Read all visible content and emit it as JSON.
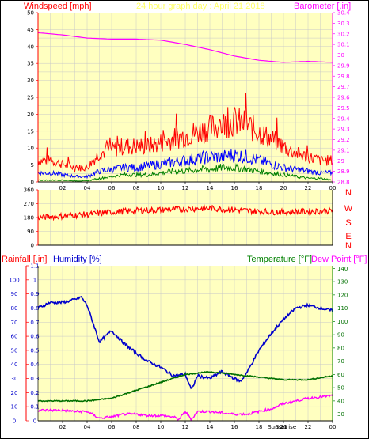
{
  "header": {
    "left": "Windspeed [mph]",
    "center": "24 hour graph day : April 21 2018",
    "right": "Barometer [.in]"
  },
  "bottom_header": {
    "rainfall": "Rainfall [.in]",
    "humidity": "Humidity [%]",
    "temperature": "Temperature [°F]",
    "dewpoint": "Dew Point [°F]"
  },
  "colors": {
    "plot_bg": "#ffffc0",
    "wind_gust": "#ff0000",
    "wind_avg": "#0000ff",
    "wind_low": "#008000",
    "barometer": "#ff00ff",
    "direction": "#ff0000",
    "humidity": "#0000cc",
    "temperature": "#007000",
    "dewpoint": "#ff00ff",
    "red_axis": "#ff0000",
    "green_axis": "#008000"
  },
  "chart_data": [
    {
      "type": "line",
      "title": "24 hour graph day : April 21 2018",
      "ylabel": "Windspeed [mph]",
      "y2label": "Barometer [.in]",
      "ylim": [
        0,
        50
      ],
      "y2lim": [
        28.8,
        30.4
      ],
      "yticks": [
        0,
        5,
        10,
        15,
        20,
        25,
        30,
        35,
        40,
        45,
        50
      ],
      "y2ticks": [
        "28.8",
        "28.9",
        "29",
        "29.1",
        "29.2",
        "29.3",
        "29.4",
        "29.5",
        "29.6",
        "29.7",
        "29.8",
        "29.9",
        "30",
        "30.1",
        "30.2",
        "30.3",
        "30.4"
      ],
      "xticks": [
        "02",
        "04",
        "06",
        "08",
        "10",
        "12",
        "14",
        "16",
        "18",
        "20",
        "22",
        "00"
      ],
      "series": [
        {
          "x": [
            0,
            1,
            2,
            3,
            4,
            5,
            6,
            7,
            8,
            9,
            10,
            11,
            12,
            13,
            14,
            15,
            16,
            17,
            18,
            19,
            20,
            21,
            22,
            23,
            24
          ],
          "values": [
            6,
            6,
            5,
            4,
            4,
            8,
            9,
            10,
            10,
            10,
            11,
            12,
            13,
            14,
            15,
            16,
            17,
            16,
            14,
            12,
            10,
            8,
            7,
            6,
            6
          ]
        },
        {
          "x": [
            0,
            1,
            2,
            3,
            4,
            5,
            6,
            7,
            8,
            9,
            10,
            11,
            12,
            13,
            14,
            15,
            16,
            17,
            18,
            19,
            20,
            21,
            22,
            23,
            24
          ],
          "values": [
            2.5,
            2.5,
            2,
            1.5,
            1.5,
            3,
            3.5,
            4,
            4,
            4.5,
            5,
            5.5,
            6,
            6.5,
            7,
            7,
            7.5,
            7,
            6,
            5,
            4,
            3.5,
            3,
            2.5,
            2.5
          ]
        },
        {
          "x": [
            0,
            1,
            2,
            3,
            4,
            5,
            6,
            7,
            8,
            9,
            10,
            11,
            12,
            13,
            14,
            15,
            16,
            17,
            18,
            19,
            20,
            21,
            22,
            23,
            24
          ],
          "values": [
            0.5,
            0.5,
            0.5,
            0.3,
            0.3,
            1,
            1.5,
            2,
            2,
            2,
            2.5,
            3,
            3,
            3.5,
            3.5,
            4,
            4,
            3.5,
            3,
            2.5,
            2,
            1.5,
            1,
            1,
            0.5
          ]
        },
        {
          "x": [
            0,
            2,
            4,
            6,
            8,
            10,
            12,
            14,
            16,
            18,
            20,
            22,
            24
          ],
          "values": [
            30.21,
            30.19,
            30.16,
            30.15,
            30.15,
            30.14,
            30.1,
            30.05,
            29.99,
            29.95,
            29.93,
            29.94,
            29.93
          ]
        }
      ]
    },
    {
      "type": "line",
      "yticks": [
        "0",
        "90",
        "180",
        "270",
        "360"
      ],
      "y_right": [
        "N",
        "W",
        "S",
        "E",
        "N"
      ],
      "ylim": [
        0,
        360
      ],
      "series": [
        {
          "x": [
            0,
            2,
            4,
            6,
            8,
            10,
            12,
            14,
            16,
            18,
            20,
            22,
            24
          ],
          "values": [
            180,
            190,
            200,
            215,
            225,
            230,
            235,
            240,
            230,
            220,
            215,
            220,
            225
          ]
        }
      ]
    },
    {
      "type": "line",
      "rain_ticks": [
        "0",
        "0.1",
        "0.2",
        "0.3",
        "0.4",
        "0.5",
        "0.6",
        "0.7",
        "0.8",
        "0.9",
        "1",
        "1.1"
      ],
      "hum_ticks": [
        "0",
        "10",
        "20",
        "30",
        "40",
        "50",
        "60",
        "70",
        "80",
        "90",
        "100"
      ],
      "temp_ticks": [
        "30",
        "40",
        "50",
        "60",
        "70",
        "80",
        "90",
        "100",
        "110",
        "120",
        "130",
        "140"
      ],
      "xticks": [
        "02",
        "04",
        "06",
        "08",
        "10",
        "12",
        "14",
        "16",
        "18",
        "20",
        "22",
        "00"
      ],
      "sun_labels": [
        "Sunset",
        "Sunrise"
      ],
      "series": [
        {
          "x": [
            0,
            1,
            2,
            3,
            3.5,
            4,
            5,
            6,
            7,
            8,
            9,
            10,
            11,
            12,
            12.5,
            13,
            14,
            15,
            16,
            16.5,
            17,
            18,
            19,
            20,
            21,
            22,
            23,
            24
          ],
          "values": [
            80,
            84,
            84,
            86,
            88,
            82,
            56,
            64,
            55,
            48,
            42,
            38,
            32,
            33,
            22,
            32,
            30,
            35,
            30,
            28,
            34,
            50,
            62,
            72,
            80,
            82,
            80,
            78
          ]
        },
        {
          "x": [
            0,
            2,
            4,
            6,
            8,
            10,
            12,
            14,
            16,
            18,
            20,
            22,
            24
          ],
          "values": [
            40,
            40,
            40,
            42,
            48,
            54,
            60,
            62,
            60,
            58,
            56,
            56,
            59
          ]
        },
        {
          "x": [
            0,
            1,
            2,
            3,
            4,
            5,
            6,
            7,
            8,
            9,
            10,
            11,
            11.5,
            12,
            12.5,
            13,
            14,
            15,
            16,
            17,
            18,
            19,
            20,
            21,
            22,
            23,
            24
          ],
          "values": [
            33,
            33,
            33,
            32,
            32,
            27,
            28,
            30,
            30,
            29,
            29,
            28,
            26,
            32,
            26,
            32,
            32,
            31,
            30,
            30,
            32,
            34,
            38,
            40,
            42,
            43,
            44
          ]
        }
      ]
    }
  ]
}
